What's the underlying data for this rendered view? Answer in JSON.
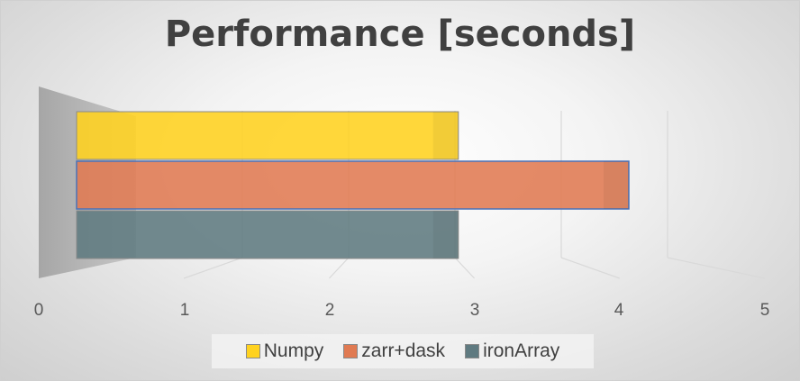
{
  "chart_data": {
    "type": "bar",
    "orientation": "horizontal",
    "title": "Performance [seconds]",
    "xlim": [
      0,
      5
    ],
    "xticks": [
      "0",
      "1",
      "2",
      "3",
      "4",
      "5"
    ],
    "grid": true,
    "legend_position": "bottom",
    "series": [
      {
        "name": "Numpy",
        "value": 2.8,
        "color": "#ffd21f"
      },
      {
        "name": "zarr+dask",
        "value": 4.05,
        "color": "#e07a52"
      },
      {
        "name": "ironArray",
        "value": 2.8,
        "color": "#5f7a80"
      }
    ]
  }
}
